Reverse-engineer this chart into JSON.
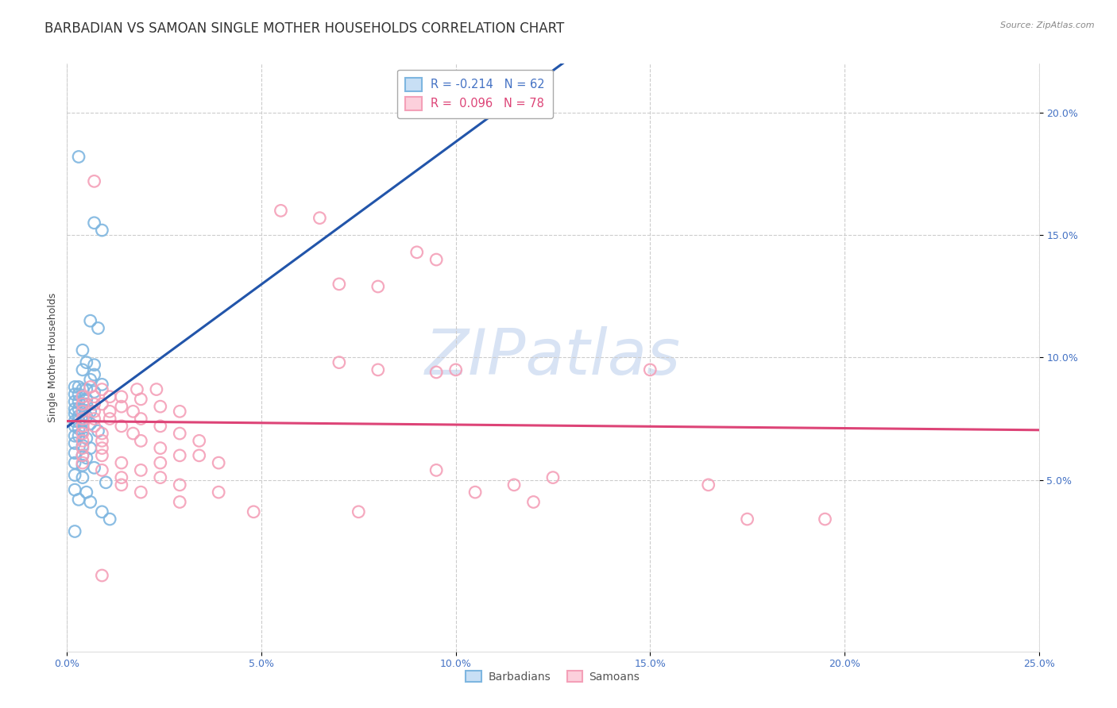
{
  "title": "BARBADIAN VS SAMOAN SINGLE MOTHER HOUSEHOLDS CORRELATION CHART",
  "source": "Source: ZipAtlas.com",
  "ylabel": "Single Mother Households",
  "barbadian_color": "#7eb6e0",
  "samoan_color": "#f4a0b8",
  "barbadian_line_color": "#2255aa",
  "samoan_line_color": "#dd4477",
  "dashed_line_color": "#aaccee",
  "background_color": "#ffffff",
  "grid_color": "#cccccc",
  "xlim": [
    0.0,
    0.25
  ],
  "ylim": [
    -0.02,
    0.22
  ],
  "x_tick_vals": [
    0.0,
    0.05,
    0.1,
    0.15,
    0.2,
    0.25
  ],
  "y_tick_vals": [
    0.05,
    0.1,
    0.15,
    0.2
  ],
  "watermark_text": "ZIPatlas",
  "watermark_color": "#c8d8f0",
  "title_fontsize": 12,
  "tick_fontsize": 9,
  "source_fontsize": 8,
  "legend1_labels": [
    "R = -0.214   N = 62",
    "R =  0.096   N = 78"
  ],
  "legend2_labels": [
    "Barbadians",
    "Samoans"
  ],
  "barbadian_points": [
    [
      0.003,
      0.182
    ],
    [
      0.007,
      0.155
    ],
    [
      0.009,
      0.152
    ],
    [
      0.006,
      0.115
    ],
    [
      0.008,
      0.112
    ],
    [
      0.004,
      0.103
    ],
    [
      0.005,
      0.098
    ],
    [
      0.007,
      0.097
    ],
    [
      0.004,
      0.095
    ],
    [
      0.007,
      0.093
    ],
    [
      0.006,
      0.091
    ],
    [
      0.009,
      0.089
    ],
    [
      0.002,
      0.088
    ],
    [
      0.003,
      0.088
    ],
    [
      0.004,
      0.087
    ],
    [
      0.005,
      0.087
    ],
    [
      0.007,
      0.086
    ],
    [
      0.002,
      0.085
    ],
    [
      0.003,
      0.085
    ],
    [
      0.004,
      0.084
    ],
    [
      0.005,
      0.083
    ],
    [
      0.002,
      0.082
    ],
    [
      0.003,
      0.082
    ],
    [
      0.004,
      0.081
    ],
    [
      0.005,
      0.081
    ],
    [
      0.002,
      0.079
    ],
    [
      0.003,
      0.079
    ],
    [
      0.004,
      0.078
    ],
    [
      0.006,
      0.078
    ],
    [
      0.002,
      0.077
    ],
    [
      0.003,
      0.076
    ],
    [
      0.005,
      0.076
    ],
    [
      0.002,
      0.074
    ],
    [
      0.003,
      0.074
    ],
    [
      0.004,
      0.074
    ],
    [
      0.006,
      0.073
    ],
    [
      0.002,
      0.072
    ],
    [
      0.003,
      0.071
    ],
    [
      0.004,
      0.07
    ],
    [
      0.008,
      0.07
    ],
    [
      0.002,
      0.068
    ],
    [
      0.003,
      0.068
    ],
    [
      0.005,
      0.067
    ],
    [
      0.002,
      0.065
    ],
    [
      0.004,
      0.064
    ],
    [
      0.006,
      0.063
    ],
    [
      0.002,
      0.061
    ],
    [
      0.004,
      0.06
    ],
    [
      0.005,
      0.059
    ],
    [
      0.002,
      0.057
    ],
    [
      0.004,
      0.056
    ],
    [
      0.007,
      0.055
    ],
    [
      0.002,
      0.052
    ],
    [
      0.004,
      0.051
    ],
    [
      0.01,
      0.049
    ],
    [
      0.002,
      0.046
    ],
    [
      0.005,
      0.045
    ],
    [
      0.003,
      0.042
    ],
    [
      0.006,
      0.041
    ],
    [
      0.009,
      0.037
    ],
    [
      0.011,
      0.034
    ],
    [
      0.002,
      0.029
    ]
  ],
  "samoan_points": [
    [
      0.007,
      0.172
    ],
    [
      0.055,
      0.16
    ],
    [
      0.065,
      0.157
    ],
    [
      0.09,
      0.143
    ],
    [
      0.095,
      0.14
    ],
    [
      0.07,
      0.13
    ],
    [
      0.08,
      0.129
    ],
    [
      0.07,
      0.098
    ],
    [
      0.08,
      0.095
    ],
    [
      0.1,
      0.095
    ],
    [
      0.095,
      0.094
    ],
    [
      0.15,
      0.095
    ],
    [
      0.006,
      0.088
    ],
    [
      0.009,
      0.087
    ],
    [
      0.018,
      0.087
    ],
    [
      0.023,
      0.087
    ],
    [
      0.004,
      0.084
    ],
    [
      0.007,
      0.084
    ],
    [
      0.011,
      0.084
    ],
    [
      0.014,
      0.084
    ],
    [
      0.019,
      0.083
    ],
    [
      0.004,
      0.081
    ],
    [
      0.007,
      0.081
    ],
    [
      0.009,
      0.081
    ],
    [
      0.014,
      0.08
    ],
    [
      0.024,
      0.08
    ],
    [
      0.004,
      0.078
    ],
    [
      0.007,
      0.078
    ],
    [
      0.011,
      0.078
    ],
    [
      0.017,
      0.078
    ],
    [
      0.029,
      0.078
    ],
    [
      0.004,
      0.075
    ],
    [
      0.007,
      0.075
    ],
    [
      0.011,
      0.075
    ],
    [
      0.019,
      0.075
    ],
    [
      0.004,
      0.072
    ],
    [
      0.007,
      0.072
    ],
    [
      0.014,
      0.072
    ],
    [
      0.024,
      0.072
    ],
    [
      0.004,
      0.069
    ],
    [
      0.009,
      0.069
    ],
    [
      0.017,
      0.069
    ],
    [
      0.029,
      0.069
    ],
    [
      0.004,
      0.066
    ],
    [
      0.009,
      0.066
    ],
    [
      0.019,
      0.066
    ],
    [
      0.034,
      0.066
    ],
    [
      0.004,
      0.063
    ],
    [
      0.009,
      0.063
    ],
    [
      0.024,
      0.063
    ],
    [
      0.004,
      0.06
    ],
    [
      0.009,
      0.06
    ],
    [
      0.029,
      0.06
    ],
    [
      0.034,
      0.06
    ],
    [
      0.004,
      0.057
    ],
    [
      0.014,
      0.057
    ],
    [
      0.024,
      0.057
    ],
    [
      0.039,
      0.057
    ],
    [
      0.009,
      0.054
    ],
    [
      0.019,
      0.054
    ],
    [
      0.095,
      0.054
    ],
    [
      0.014,
      0.051
    ],
    [
      0.024,
      0.051
    ],
    [
      0.125,
      0.051
    ],
    [
      0.014,
      0.048
    ],
    [
      0.029,
      0.048
    ],
    [
      0.115,
      0.048
    ],
    [
      0.165,
      0.048
    ],
    [
      0.019,
      0.045
    ],
    [
      0.039,
      0.045
    ],
    [
      0.105,
      0.045
    ],
    [
      0.029,
      0.041
    ],
    [
      0.12,
      0.041
    ],
    [
      0.048,
      0.037
    ],
    [
      0.075,
      0.037
    ],
    [
      0.175,
      0.034
    ],
    [
      0.195,
      0.034
    ],
    [
      0.009,
      0.011
    ]
  ]
}
